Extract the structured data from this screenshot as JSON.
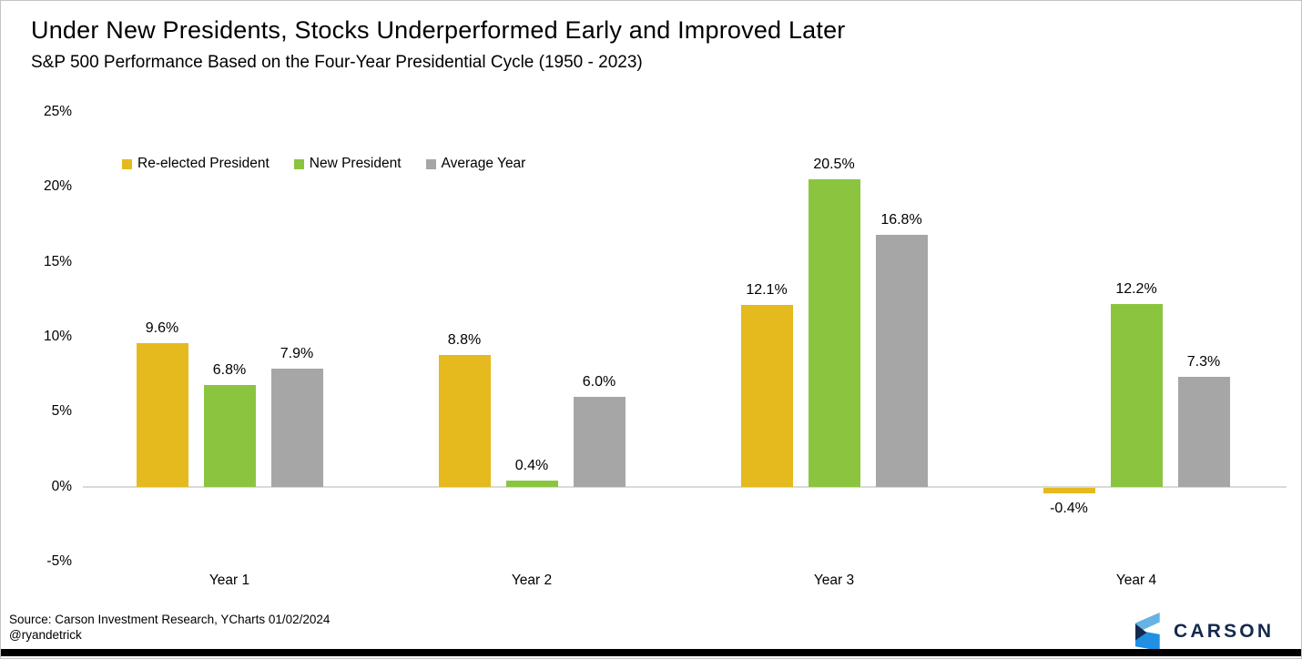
{
  "header": {
    "title": "Under New Presidents, Stocks Underperformed Early and Improved Later",
    "subtitle": "S&P 500 Performance Based on the Four-Year Presidential Cycle (1950 - 2023)"
  },
  "chart_data": {
    "type": "bar",
    "categories": [
      "Year 1",
      "Year 2",
      "Year 3",
      "Year 4"
    ],
    "series": [
      {
        "name": "Re-elected President",
        "color": "#e4ba1f",
        "values": [
          9.6,
          8.8,
          12.1,
          -0.4
        ]
      },
      {
        "name": "New President",
        "color": "#8bc540",
        "values": [
          6.8,
          0.4,
          20.5,
          12.2
        ]
      },
      {
        "name": "Average Year",
        "color": "#a6a6a6",
        "values": [
          7.9,
          6.0,
          16.8,
          7.3
        ]
      }
    ],
    "ylabel": "",
    "xlabel": "",
    "ylim": [
      -5,
      25
    ],
    "ytick_step": 5,
    "ytick_labels": [
      "25%",
      "20%",
      "15%",
      "10%",
      "5%",
      "0%",
      "-5%"
    ],
    "grid": false,
    "legend_position": "top-left",
    "value_labels": [
      [
        "9.6%",
        "8.8%",
        "12.1%",
        "-0.4%"
      ],
      [
        "6.8%",
        "0.4%",
        "20.5%",
        "12.2%"
      ],
      [
        "7.9%",
        "6.0%",
        "16.8%",
        "7.3%"
      ]
    ],
    "zero_line_color": "#d9d9d9"
  },
  "footer": {
    "source": "Source: Carson Investment Research, YCharts 01/02/2024",
    "handle": "@ryandetrick"
  },
  "branding": {
    "logo_text": "CARSON",
    "navy": "#15294d",
    "light_blue": "#66b2e4",
    "bright_blue": "#2190e3"
  }
}
